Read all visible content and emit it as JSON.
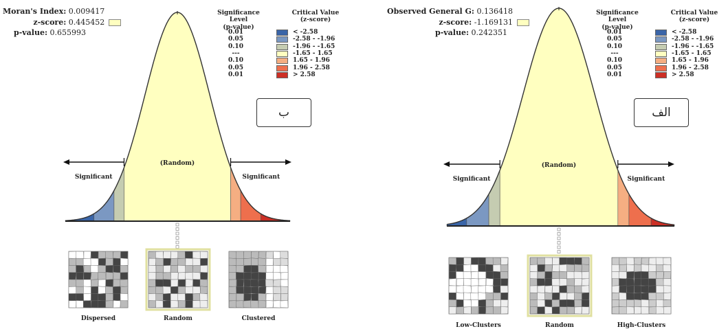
{
  "colors": {
    "c1": "#3a65a8",
    "c2": "#7b98c2",
    "c3": "#c5ccb1",
    "c4": "#ffffc0",
    "c5": "#f5ae82",
    "c6": "#ee6f4d",
    "c7": "#cc2f25",
    "curve": "#333333",
    "selected_border": "#e0e0a0"
  },
  "legend": {
    "sig_header": [
      "Significance Level",
      "(p-value)"
    ],
    "crit_header": [
      "Critical Value",
      "(z-score)"
    ],
    "rows": [
      {
        "sig": "0.01",
        "crit": "< -2.58",
        "color": "#3a65a8"
      },
      {
        "sig": "0.05",
        "crit": "-2.58 - -1.96",
        "color": "#7b98c2"
      },
      {
        "sig": "0.10",
        "crit": "-1.96 - -1.65",
        "color": "#c5ccb1"
      },
      {
        "sig": "---",
        "crit": "-1.65 - 1.65",
        "color": "#ffffc0"
      },
      {
        "sig": "0.10",
        "crit": "1.65 - 1.96",
        "color": "#f5ae82"
      },
      {
        "sig": "0.05",
        "crit": "1.96 - 2.58",
        "color": "#ee6f4d"
      },
      {
        "sig": "0.01",
        "crit": "> 2.58",
        "color": "#cc2f25"
      }
    ]
  },
  "panel_b": {
    "stats": [
      {
        "label": "Moran's Index:",
        "value": "0.009417",
        "swatch": false
      },
      {
        "label": "z-score:",
        "value": "0.445452",
        "swatch": true
      },
      {
        "label": "p-value:",
        "value": "0.655993",
        "swatch": false
      }
    ],
    "tag": "ب",
    "significant_left": "Significant",
    "significant_right": "Significant",
    "random_label": "(Random)",
    "thumbs": [
      "Dispersed",
      "Random",
      "Clustered"
    ]
  },
  "panel_a": {
    "stats": [
      {
        "label": "Observed General G:",
        "value": "0.136418",
        "swatch": false
      },
      {
        "label": "z-score:",
        "value": "-1.169131",
        "swatch": true
      },
      {
        "label": "p-value:",
        "value": "0.242351",
        "swatch": false
      }
    ],
    "tag": "الف",
    "significant_left": "Significant",
    "significant_right": "Significant",
    "random_label": "(Random)",
    "thumbs": [
      "Low-Clusters",
      "Random",
      "High-Clusters"
    ]
  }
}
